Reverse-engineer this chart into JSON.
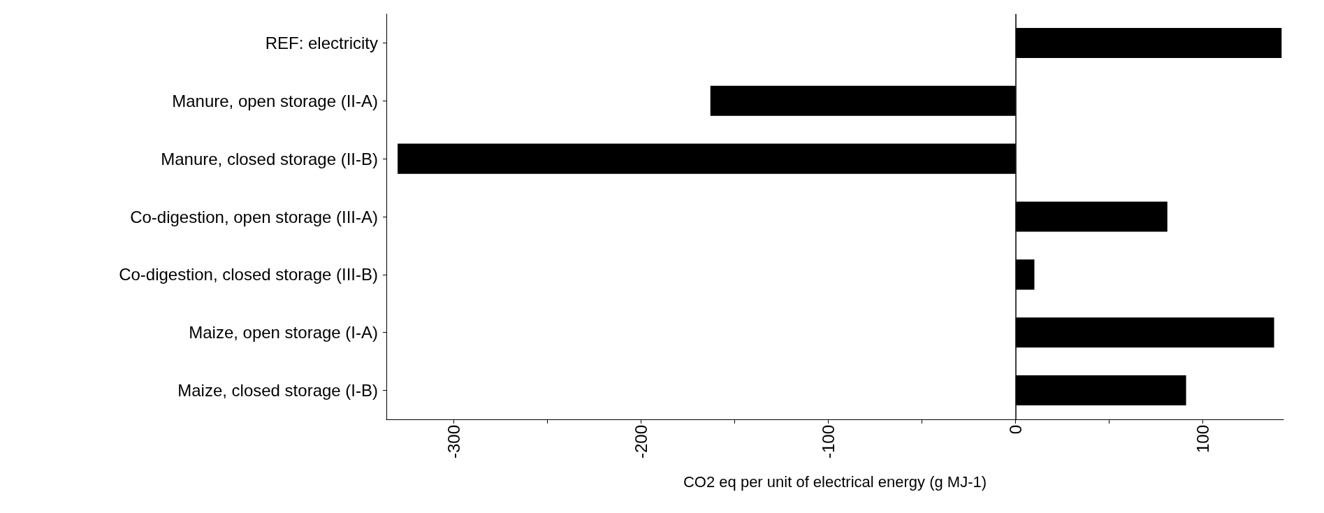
{
  "chart_data": {
    "type": "bar",
    "orientation": "horizontal",
    "xlabel": "CO2 eq per unit of electrical energy (g MJ-1)",
    "categories": [
      "REF: electricity",
      "Manure, open storage (II-A)",
      "Manure, closed storage (II-B)",
      "Co-digestion, open storage (III-A)",
      "Co-digestion, closed storage (III-B)",
      "Maize, open storage (I-A)",
      "Maize, closed storage (I-B)"
    ],
    "values": [
      142,
      -163,
      -330,
      81,
      10,
      138,
      91
    ],
    "color": "#000000",
    "xlim": [
      -336,
      143
    ],
    "xticks": [
      -300,
      {
        "value": -250,
        "label": null
      },
      -200,
      {
        "value": -150,
        "label": null
      },
      -100,
      {
        "value": -50,
        "label": null
      },
      0,
      {
        "value": 50,
        "label": null
      },
      100
    ],
    "ref_lines": [
      {
        "axis": "x",
        "value": 0,
        "label": null,
        "color": "#000000"
      }
    ],
    "grid": false
  }
}
